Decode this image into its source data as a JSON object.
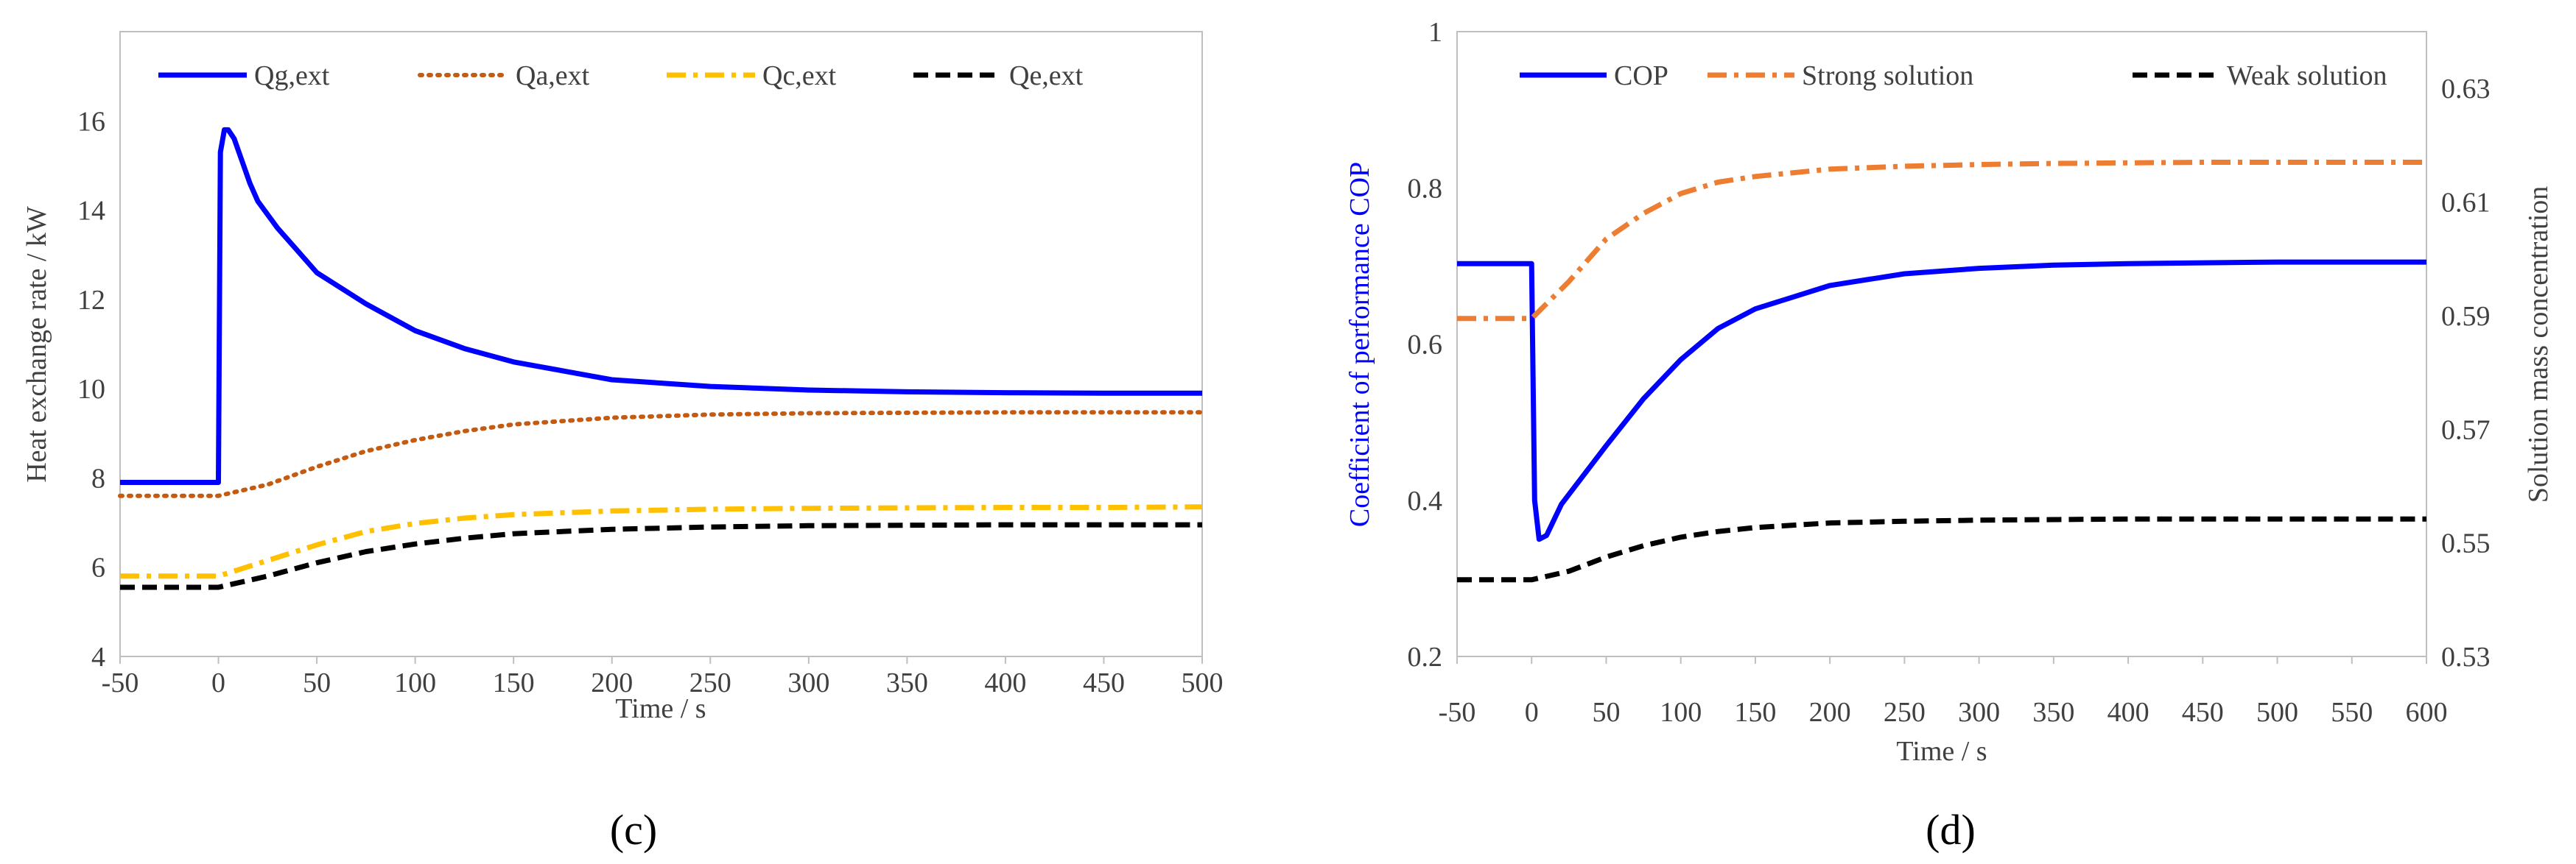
{
  "chart_data": [
    {
      "panel": "(c)",
      "type": "line",
      "xlabel": "Time / s",
      "ylabel": "Heat exchange rate / kW",
      "xlim": [
        -50,
        500
      ],
      "ylim": [
        4,
        18
      ],
      "xticks": [
        -50,
        0,
        50,
        100,
        150,
        200,
        250,
        300,
        350,
        400,
        450,
        500
      ],
      "yticks": [
        4,
        6,
        8,
        10,
        12,
        14,
        16
      ],
      "legend_position": "top",
      "series": [
        {
          "name": "Qg,ext",
          "color": "#0000FF",
          "style": "solid",
          "x": [
            -50,
            -1,
            0,
            1,
            3,
            5,
            8,
            12,
            16,
            20,
            30,
            40,
            50,
            75,
            100,
            125,
            150,
            200,
            250,
            300,
            350,
            400,
            450,
            500
          ],
          "y": [
            7.9,
            7.9,
            7.9,
            15.3,
            15.8,
            15.8,
            15.6,
            15.1,
            14.6,
            14.2,
            13.6,
            13.1,
            12.6,
            11.9,
            11.3,
            10.9,
            10.6,
            10.2,
            10.05,
            9.97,
            9.93,
            9.91,
            9.9,
            9.9
          ]
        },
        {
          "name": "Qa,ext",
          "color": "#C55A11",
          "style": "dotted",
          "x": [
            -50,
            0,
            25,
            50,
            75,
            100,
            125,
            150,
            200,
            250,
            300,
            350,
            400,
            450,
            500
          ],
          "y": [
            7.6,
            7.6,
            7.85,
            8.25,
            8.6,
            8.85,
            9.05,
            9.2,
            9.35,
            9.42,
            9.45,
            9.46,
            9.47,
            9.47,
            9.47
          ]
        },
        {
          "name": "Qc,ext",
          "color": "#FFC000",
          "style": "dashdot",
          "x": [
            -50,
            0,
            25,
            50,
            75,
            100,
            125,
            150,
            200,
            250,
            300,
            350,
            400,
            450,
            500
          ],
          "y": [
            5.8,
            5.8,
            6.15,
            6.5,
            6.8,
            6.98,
            7.1,
            7.18,
            7.26,
            7.3,
            7.32,
            7.33,
            7.34,
            7.34,
            7.35
          ]
        },
        {
          "name": "Qe,ext",
          "color": "#000000",
          "style": "dashed",
          "x": [
            -50,
            0,
            25,
            50,
            75,
            100,
            125,
            150,
            200,
            250,
            300,
            350,
            400,
            450,
            500
          ],
          "y": [
            5.55,
            5.55,
            5.8,
            6.1,
            6.35,
            6.52,
            6.65,
            6.75,
            6.85,
            6.9,
            6.93,
            6.94,
            6.95,
            6.95,
            6.95
          ]
        }
      ]
    },
    {
      "panel": "(d)",
      "type": "line",
      "xlabel": "Time / s",
      "ylabel": "Coefficient of performance COP",
      "ylabel_right": "Solution mass concentration",
      "xlim": [
        -50,
        600
      ],
      "ylim": [
        0.2,
        1.0
      ],
      "ylim_right": [
        0.53,
        0.64
      ],
      "xticks": [
        -50,
        0,
        50,
        100,
        150,
        200,
        250,
        300,
        350,
        400,
        450,
        500,
        550,
        600
      ],
      "yticks": [
        0.2,
        0.4,
        0.6,
        0.8,
        1.0
      ],
      "yticks_right": [
        0.53,
        0.55,
        0.57,
        0.59,
        0.61,
        0.63
      ],
      "legend_position": "top",
      "series": [
        {
          "name": "COP",
          "axis": "left",
          "color": "#0000FF",
          "style": "solid",
          "x": [
            -50,
            -1,
            0,
            2,
            5,
            10,
            20,
            30,
            50,
            75,
            100,
            125,
            150,
            175,
            200,
            250,
            300,
            350,
            400,
            450,
            500,
            550,
            600
          ],
          "y": [
            0.703,
            0.703,
            0.703,
            0.4,
            0.35,
            0.355,
            0.395,
            0.42,
            0.47,
            0.53,
            0.58,
            0.62,
            0.645,
            0.66,
            0.675,
            0.69,
            0.697,
            0.701,
            0.703,
            0.704,
            0.705,
            0.705,
            0.705
          ]
        },
        {
          "name": "Strong solution",
          "axis": "right",
          "color": "#ED7D31",
          "style": "dashdot",
          "x": [
            -50,
            0,
            25,
            50,
            75,
            100,
            125,
            150,
            200,
            250,
            300,
            350,
            400,
            450,
            500,
            550,
            600
          ],
          "y": [
            0.5895,
            0.5895,
            0.596,
            0.6035,
            0.608,
            0.6115,
            0.6135,
            0.6145,
            0.6158,
            0.6163,
            0.6166,
            0.6168,
            0.6169,
            0.617,
            0.617,
            0.617,
            0.617
          ]
        },
        {
          "name": "Weak solution",
          "axis": "right",
          "color": "#000000",
          "style": "dashed",
          "x": [
            -50,
            0,
            25,
            50,
            75,
            100,
            125,
            150,
            200,
            250,
            300,
            350,
            400,
            450,
            500,
            550,
            600
          ],
          "y": [
            0.5435,
            0.5435,
            0.545,
            0.5475,
            0.5495,
            0.551,
            0.552,
            0.5527,
            0.5535,
            0.5538,
            0.554,
            0.5541,
            0.5542,
            0.5542,
            0.5542,
            0.5542,
            0.5542
          ]
        }
      ]
    }
  ]
}
